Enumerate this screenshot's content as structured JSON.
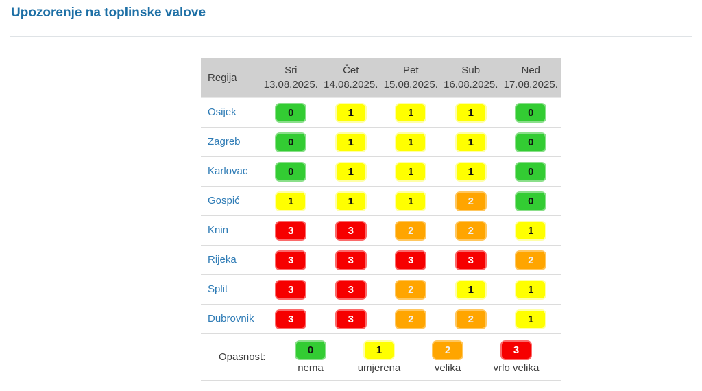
{
  "header": {
    "title": "Upozorenje na toplinske valove"
  },
  "table": {
    "region_header": "Regija",
    "days": [
      {
        "day": "Sri",
        "date": "13.08.2025."
      },
      {
        "day": "Čet",
        "date": "14.08.2025."
      },
      {
        "day": "Pet",
        "date": "15.08.2025."
      },
      {
        "day": "Sub",
        "date": "16.08.2025."
      },
      {
        "day": "Ned",
        "date": "17.08.2025."
      }
    ],
    "rows": [
      {
        "region": "Osijek",
        "levels": [
          "0",
          "1",
          "1",
          "1",
          "0"
        ]
      },
      {
        "region": "Zagreb",
        "levels": [
          "0",
          "1",
          "1",
          "1",
          "0"
        ]
      },
      {
        "region": "Karlovac",
        "levels": [
          "0",
          "1",
          "1",
          "1",
          "0"
        ]
      },
      {
        "region": "Gospić",
        "levels": [
          "1",
          "1",
          "1",
          "2",
          "0"
        ]
      },
      {
        "region": "Knin",
        "levels": [
          "3",
          "3",
          "2",
          "2",
          "1"
        ]
      },
      {
        "region": "Rijeka",
        "levels": [
          "3",
          "3",
          "3",
          "3",
          "2"
        ]
      },
      {
        "region": "Split",
        "levels": [
          "3",
          "3",
          "2",
          "1",
          "1"
        ]
      },
      {
        "region": "Dubrovnik",
        "levels": [
          "3",
          "3",
          "2",
          "2",
          "1"
        ]
      }
    ]
  },
  "legend": {
    "label": "Opasnost:",
    "items": [
      {
        "value": "0",
        "label": "nema"
      },
      {
        "value": "1",
        "label": "umjerena"
      },
      {
        "value": "2",
        "label": "velika"
      },
      {
        "value": "3",
        "label": "vrlo velika"
      }
    ]
  },
  "severity_colors": {
    "0": {
      "bg": "#33cc33",
      "border": "#8adf8a",
      "fg": "#111111"
    },
    "1": {
      "bg": "#ffff00",
      "border": "#ffffa6",
      "fg": "#111111"
    },
    "2": {
      "bg": "#ffa500",
      "border": "#ffc75f",
      "fg": "#f0f0f0"
    },
    "3": {
      "bg": "#f60000",
      "border": "#fb6a6a",
      "fg": "#ffffff"
    }
  }
}
